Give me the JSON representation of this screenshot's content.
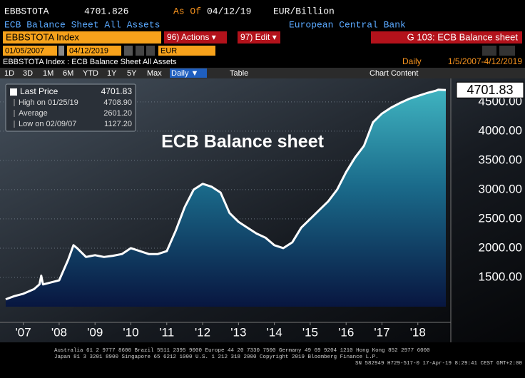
{
  "header": {
    "ticker": "EBBSTOTA",
    "value": "4701.826",
    "as_of_label": "As Of",
    "as_of_date": "04/12/19",
    "unit": "EUR/Billion",
    "description": "ECB Balance Sheet All Assets",
    "source": "European Central Bank"
  },
  "command_bar": {
    "security": "EBBSTOTA Index",
    "actions": "96) Actions ▾",
    "edit": "97) Edit ▾",
    "page": "G 103: ECB Balance sheet"
  },
  "range_bar": {
    "start": "01/05/2007",
    "end": "04/12/2019",
    "currency": "EUR",
    "frequency": "Daily",
    "range": "1/5/2007-4/12/2019"
  },
  "security_line": "EBBSTOTA Index : ECB Balance Sheet All Assets",
  "tabs": [
    "1D",
    "3D",
    "1M",
    "6M",
    "YTD",
    "1Y",
    "5Y",
    "Max",
    "Daily ▼",
    "Table",
    "Chart Content"
  ],
  "stats_box": [
    {
      "label": "Last Price",
      "value": "4701.83"
    },
    {
      "label": "High on 01/25/19",
      "value": "4708.90"
    },
    {
      "label": "Average",
      "value": "2601.20"
    },
    {
      "label": "Low on 02/09/07",
      "value": "1127.20"
    }
  ],
  "last_price_tag": "4701.83",
  "chart_data": {
    "type": "area",
    "annotation": "ECB Balance sheet",
    "x": [
      2007.01,
      2007.25,
      2007.5,
      2007.8,
      2007.95,
      2008.0,
      2008.05,
      2008.5,
      2008.75,
      2008.9,
      2009.0,
      2009.25,
      2009.5,
      2009.75,
      2010.0,
      2010.25,
      2010.5,
      2010.75,
      2011.0,
      2011.25,
      2011.5,
      2011.75,
      2012.0,
      2012.25,
      2012.5,
      2012.75,
      2013.0,
      2013.25,
      2013.5,
      2013.75,
      2014.0,
      2014.25,
      2014.5,
      2014.75,
      2015.0,
      2015.25,
      2015.5,
      2015.75,
      2016.0,
      2016.25,
      2016.5,
      2016.75,
      2017.0,
      2017.25,
      2017.5,
      2017.75,
      2018.0,
      2018.25,
      2018.5,
      2018.75,
      2019.0,
      2019.07,
      2019.28
    ],
    "series": [
      {
        "name": "Last Price",
        "color": "#ffffff",
        "values": [
          1127.2,
          1180,
          1220,
          1300,
          1380,
          1530,
          1380,
          1450,
          1800,
          2050,
          2000,
          1850,
          1880,
          1850,
          1870,
          1900,
          2000,
          1950,
          1900,
          1900,
          1950,
          2300,
          2700,
          3000,
          3100,
          3050,
          2950,
          2600,
          2450,
          2350,
          2250,
          2180,
          2050,
          2000,
          2100,
          2350,
          2500,
          2650,
          2800,
          3000,
          3300,
          3550,
          3750,
          4150,
          4300,
          4400,
          4480,
          4550,
          4600,
          4650,
          4690,
          4708.9,
          4701.83
        ]
      }
    ],
    "xlim": [
      2007,
      2019.3
    ],
    "xticks": [
      {
        "value": 2007.5,
        "label": "'07"
      },
      {
        "value": 2008.5,
        "label": "'08"
      },
      {
        "value": 2009.5,
        "label": "'09"
      },
      {
        "value": 2010.5,
        "label": "'10"
      },
      {
        "value": 2011.5,
        "label": "'11"
      },
      {
        "value": 2012.5,
        "label": "'12"
      },
      {
        "value": 2013.5,
        "label": "'13"
      },
      {
        "value": 2014.5,
        "label": "'14"
      },
      {
        "value": 2015.5,
        "label": "'15"
      },
      {
        "value": 2016.5,
        "label": "'16"
      },
      {
        "value": 2017.5,
        "label": "'17"
      },
      {
        "value": 2018.5,
        "label": "'18"
      }
    ],
    "ylim": [
      1000,
      4900
    ],
    "yticks": [
      {
        "value": 1500,
        "label": "1500.00"
      },
      {
        "value": 2000,
        "label": "2000.00"
      },
      {
        "value": 2500,
        "label": "2500.00"
      },
      {
        "value": 3000,
        "label": "3000.00"
      },
      {
        "value": 3500,
        "label": "3500.00"
      },
      {
        "value": 4000,
        "label": "4000.00"
      },
      {
        "value": 4500,
        "label": "4500.00"
      }
    ],
    "grid": true
  },
  "footer": [
    "Australia 61 2 9777 8600 Brazil 5511 2395 9000 Europe 44 20 7330 7500 Germany 49 69 9204 1210 Hong Kong 852 2977 6000",
    "Japan 81 3 3201 8900        Singapore 65 6212 1000        U.S. 1 212 318 2000        Copyright 2019 Bloomberg Finance L.P.",
    "SN 582949 H729-517-0 17-Apr-19  8:29:41 CEST GMT+2:00"
  ]
}
